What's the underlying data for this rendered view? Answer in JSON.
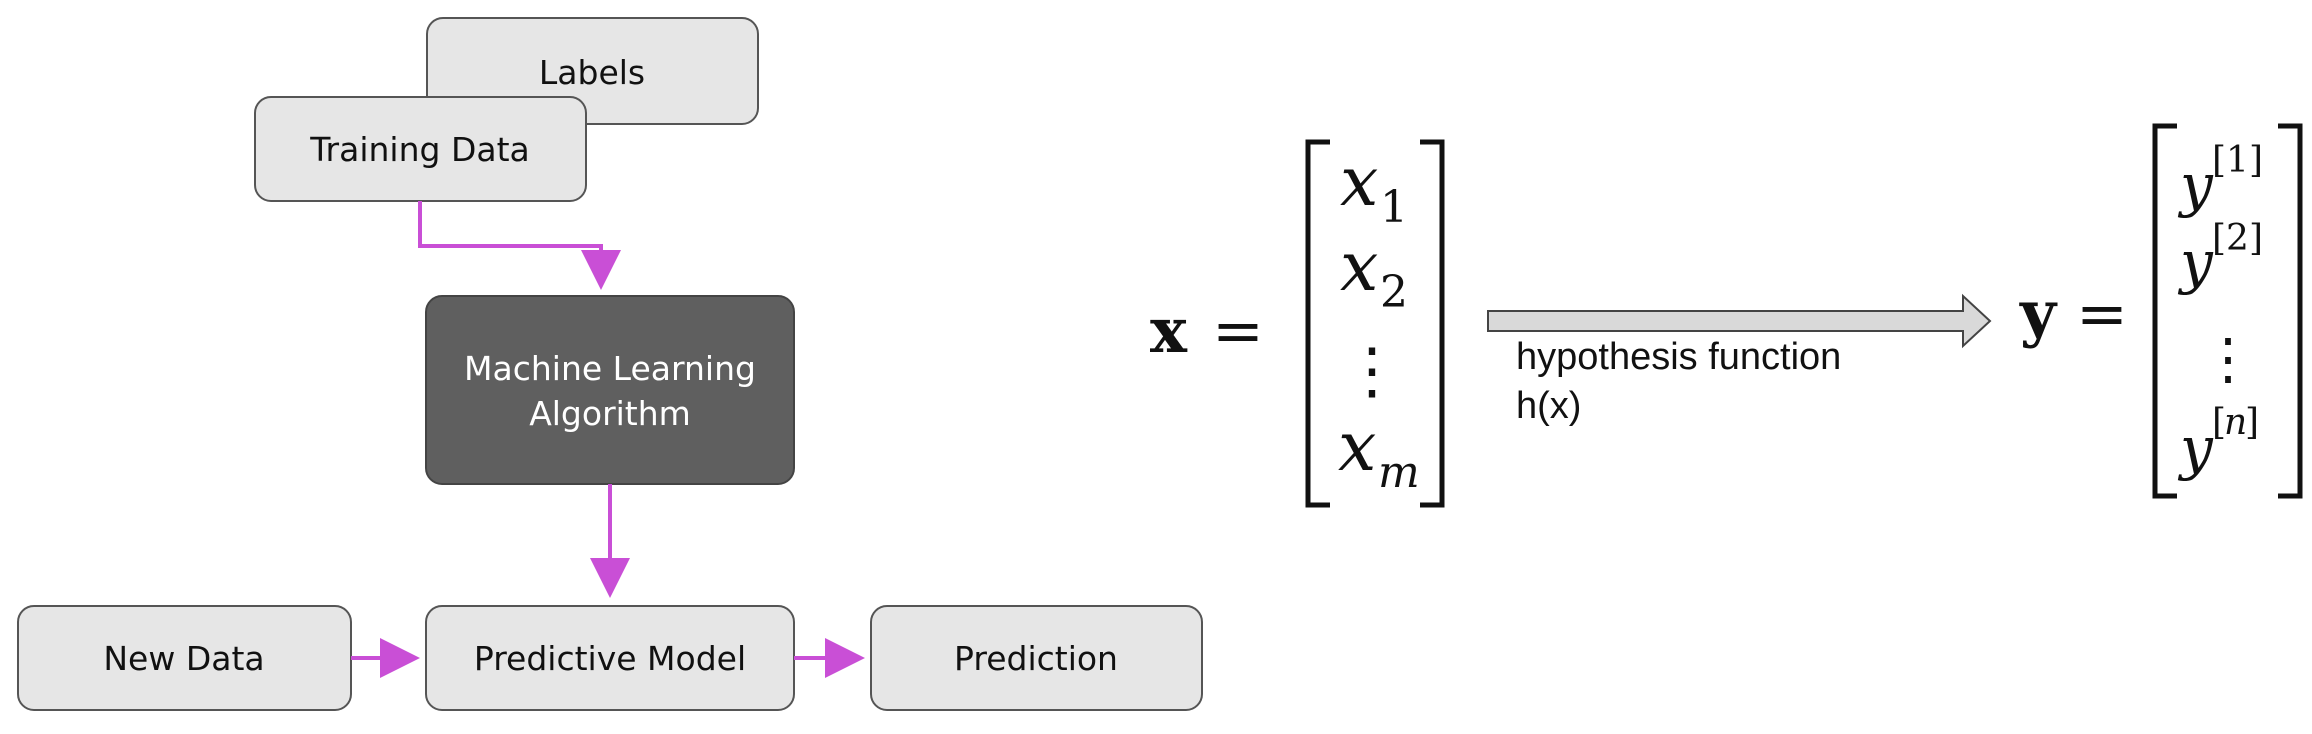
{
  "flowchart": {
    "labels": "Labels",
    "training_data": "Training Data",
    "algorithm_line1": "Machine Learning",
    "algorithm_line2": "Algorithm",
    "new_data": "New Data",
    "predictive_model": "Predictive Model",
    "prediction": "Prediction"
  },
  "equation": {
    "x_lhs": "x",
    "y_lhs": "y",
    "equals": "=",
    "x_var": "x",
    "x_sub_1": "1",
    "x_sub_2": "2",
    "x_sub_m": "m",
    "y_var": "y",
    "y_sup_1": "[1]",
    "y_sup_2": "[2]",
    "y_sup_n": "n",
    "y_sup_open": "[",
    "y_sup_close": "]",
    "vdots": "⋮",
    "arrow_label_line1": "hypothesis function",
    "arrow_label_line2": "h(x)"
  },
  "colors": {
    "box_fill": "#e6e6e6",
    "box_stroke": "#555555",
    "algorithm_fill": "#5f5f5f",
    "connector": "#c94fd6",
    "arrow_fill": "#d9d9d9"
  }
}
